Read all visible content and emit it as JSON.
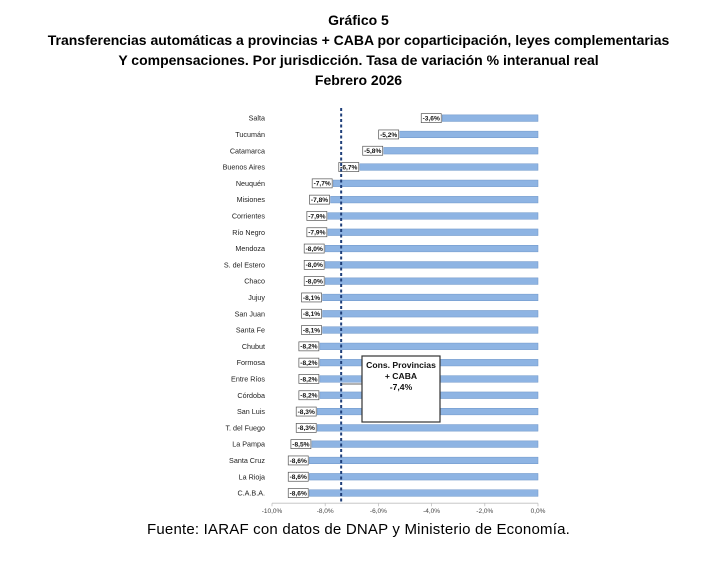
{
  "title": "Gráfico 5",
  "subtitle_line1": "Transferencias automáticas a provincias + CABA por coparticipación, leyes complementarias",
  "subtitle_line2": "Y compensaciones. Por jurisdicción. Tasa de variación % interanual real",
  "subtitle_line3": "Febrero 2026",
  "source": "Fuente: IARAF con datos de DNAP y Ministerio de Economía.",
  "colors": {
    "bar": "#8eb4e3",
    "bar_stroke": "#6f96c8",
    "reference_line": "#1f3f7a"
  },
  "chart_data": {
    "type": "bar",
    "orientation": "horizontal",
    "categories": [
      "Salta",
      "Tucumán",
      "Catamarca",
      "Buenos Aires",
      "Neuquén",
      "Misiones",
      "Corrientes",
      "Río Negro",
      "Mendoza",
      "S. del Estero",
      "Chaco",
      "Jujuy",
      "San Juan",
      "Santa Fe",
      "Chubut",
      "Formosa",
      "Entre Ríos",
      "Córdoba",
      "San Luis",
      "T. del Fuego",
      "La Pampa",
      "Santa Cruz",
      "La Rioja",
      "C.A.B.A."
    ],
    "values": [
      -3.6,
      -5.2,
      -5.8,
      -6.7,
      -7.7,
      -7.8,
      -7.9,
      -7.9,
      -8.0,
      -8.0,
      -8.0,
      -8.1,
      -8.1,
      -8.1,
      -8.2,
      -8.2,
      -8.2,
      -8.2,
      -8.3,
      -8.3,
      -8.5,
      -8.6,
      -8.6,
      -8.6
    ],
    "data_labels": [
      "-3,6%",
      "-5,2%",
      "-5,8%",
      "-6,7%",
      "-7,7%",
      "-7,8%",
      "-7,9%",
      "-7,9%",
      "-8,0%",
      "-8,0%",
      "-8,0%",
      "-8,1%",
      "-8,1%",
      "-8,1%",
      "-8,2%",
      "-8,2%",
      "-8,2%",
      "-8,2%",
      "-8,3%",
      "-8,3%",
      "-8,5%",
      "-8,6%",
      "-8,6%",
      "-8,6%"
    ],
    "xlim": [
      -10,
      0
    ],
    "x_ticks": [
      -10,
      -8,
      -6,
      -4,
      -2,
      0
    ],
    "x_tick_labels": [
      "-10,0%",
      "-8,0%",
      "-6,0%",
      "-4,0%",
      "-2,0%",
      "0,0%"
    ],
    "reference_line": {
      "value": -7.4,
      "style": "dashed"
    },
    "annotation": {
      "line1": "Cons. Provincias",
      "line2": "+ CABA",
      "line3": "-7,4%"
    },
    "grid": false,
    "legend": "none"
  }
}
